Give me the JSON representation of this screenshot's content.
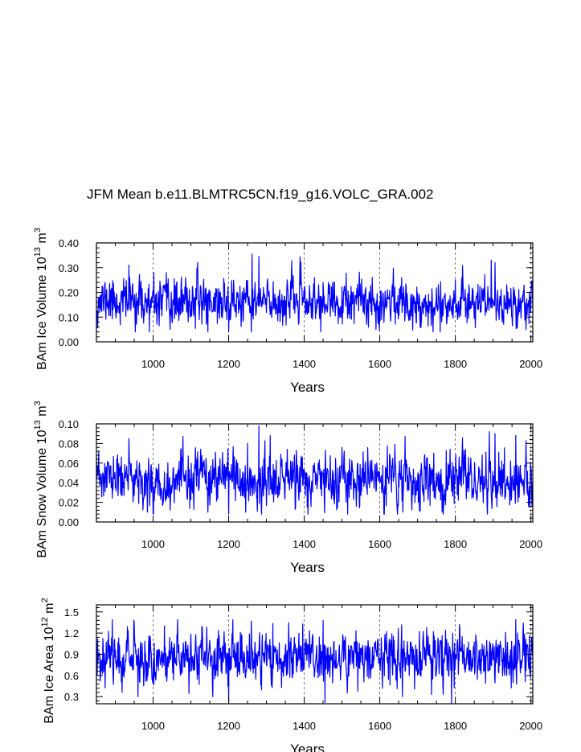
{
  "title": "JFM Mean b.e11.BLMTRC5CN.f19_g16.VOLC_GRA.002",
  "colors": {
    "series": "#0000ff",
    "axis": "#000000",
    "grid": "#555555"
  },
  "chart_data": [
    {
      "type": "line",
      "id": "ice-volume",
      "ylabel": "BAm Ice Volume 10",
      "ylabel_exp1": "13",
      "ylabel_unit": " m",
      "ylabel_exp2": "3",
      "xlabel": "Years",
      "xlim": [
        850,
        2005
      ],
      "ylim": [
        0.0,
        0.4
      ],
      "xticks": [
        1000,
        1200,
        1400,
        1600,
        1800,
        2000
      ],
      "xtick_labels": [
        "1000",
        "1200",
        "1400",
        "1600",
        "1800",
        "2000"
      ],
      "yticks": [
        0.0,
        0.1,
        0.2,
        0.3,
        0.4
      ],
      "ytick_labels": [
        "0.00",
        "0.10",
        "0.20",
        "0.30",
        "0.40"
      ],
      "grid_x": [
        1000,
        1200,
        1400,
        1600,
        1800,
        2000
      ],
      "series": {
        "name": "Ice Volume",
        "x_start": 850,
        "x_end": 2005,
        "mean": 0.16,
        "std": 0.045,
        "min": 0.04,
        "max": 0.36,
        "seed": 11,
        "peaks": [
          [
            936,
            0.31
          ],
          [
            1262,
            0.355
          ],
          [
            1280,
            0.345
          ],
          [
            1895,
            0.33
          ],
          [
            1905,
            0.32
          ]
        ],
        "troughs": [
          [
            990,
            0.04
          ],
          [
            1045,
            0.05
          ],
          [
            1145,
            0.04
          ],
          [
            1200,
            0.035
          ],
          [
            1590,
            0.05
          ],
          [
            1760,
            0.04
          ]
        ]
      }
    },
    {
      "type": "line",
      "id": "snow-volume",
      "ylabel": "BAm Snow Volume 10",
      "ylabel_exp1": "13",
      "ylabel_unit": " m",
      "ylabel_exp2": "3",
      "xlabel": "Years",
      "xlim": [
        850,
        2005
      ],
      "ylim": [
        0.0,
        0.1
      ],
      "xticks": [
        1000,
        1200,
        1400,
        1600,
        1800,
        2000
      ],
      "xtick_labels": [
        "1000",
        "1200",
        "1400",
        "1600",
        "1800",
        "2000"
      ],
      "yticks": [
        0.0,
        0.02,
        0.04,
        0.06,
        0.08,
        0.1
      ],
      "ytick_labels": [
        "0.00",
        "0.02",
        "0.04",
        "0.06",
        "0.08",
        "0.10"
      ],
      "grid_x": [
        1000,
        1200,
        1400,
        1600,
        1800,
        2000
      ],
      "series": {
        "name": "Snow Volume",
        "x_start": 850,
        "x_end": 2005,
        "mean": 0.042,
        "std": 0.013,
        "min": 0.008,
        "max": 0.098,
        "seed": 23,
        "peaks": [
          [
            936,
            0.085
          ],
          [
            1250,
            0.08
          ],
          [
            1280,
            0.098
          ],
          [
            1890,
            0.092
          ],
          [
            1905,
            0.09
          ],
          [
            1960,
            0.088
          ]
        ],
        "troughs": [
          [
            985,
            0.01
          ],
          [
            1045,
            0.012
          ],
          [
            1200,
            0.008
          ],
          [
            1245,
            0.01
          ],
          [
            1515,
            0.008
          ],
          [
            1765,
            0.01
          ]
        ]
      }
    },
    {
      "type": "line",
      "id": "ice-area",
      "ylabel": "BAm Ice Area 10",
      "ylabel_exp1": "12",
      "ylabel_unit": " m",
      "ylabel_exp2": "2",
      "xlabel": "Years",
      "xlim": [
        850,
        2005
      ],
      "ylim": [
        0.2,
        1.6
      ],
      "xticks": [
        1000,
        1200,
        1400,
        1600,
        1800,
        2000
      ],
      "xtick_labels": [
        "1000",
        "1200",
        "1400",
        "1600",
        "1800",
        "2000"
      ],
      "yticks": [
        0.3,
        0.6,
        0.9,
        1.2,
        1.5
      ],
      "ytick_labels": [
        "0.3",
        "0.6",
        "0.9",
        "1.2",
        "1.5"
      ],
      "grid_x": [
        1000,
        1200,
        1400,
        1600,
        1800,
        2000
      ],
      "series": {
        "name": "Ice Area",
        "x_start": 850,
        "x_end": 2005,
        "mean": 0.86,
        "std": 0.18,
        "min": 0.2,
        "max": 1.39,
        "seed": 37,
        "peaks": [
          [
            1030,
            1.3
          ],
          [
            1260,
            1.37
          ],
          [
            1450,
            1.38
          ],
          [
            1960,
            1.4
          ]
        ],
        "troughs": [
          [
            960,
            0.3
          ],
          [
            1200,
            0.22
          ],
          [
            1455,
            0.22
          ],
          [
            1660,
            0.3
          ],
          [
            1790,
            0.2
          ]
        ]
      }
    }
  ]
}
